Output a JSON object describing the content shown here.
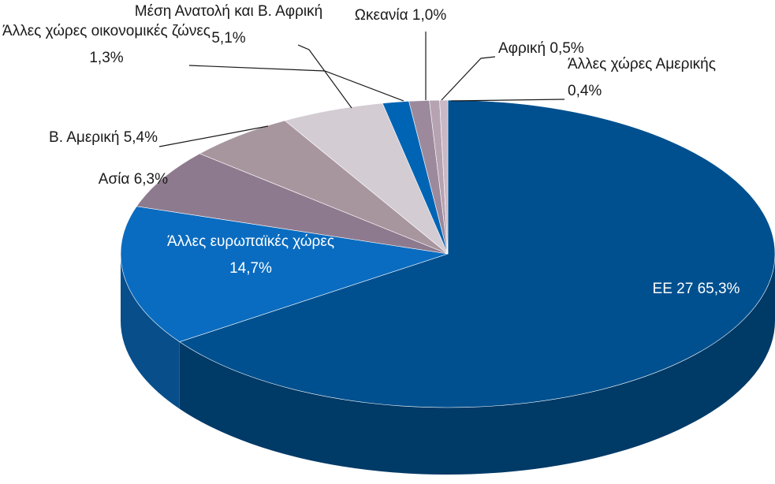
{
  "chart_data": {
    "type": "pie",
    "categories": [
      "ΕΕ 27",
      "Άλλες ευρωπαϊκές χώρες",
      "Ασία",
      "Β. Αμερική",
      "Μέση Ανατολή και Β. Αφρική",
      "Άλλες χώρες οικονομικές ζώνες",
      "Ωκεανία",
      "Αφρική",
      "Άλλες χώρες Αμερικής"
    ],
    "values": [
      65.3,
      14.7,
      6.3,
      5.4,
      5.1,
      1.3,
      1.0,
      0.5,
      0.4
    ],
    "value_labels": [
      "65,3%",
      "14,7%",
      "6,3%",
      "5,4%",
      "5,1%",
      "1,3%",
      "1,0%",
      "0,5%",
      "0,4%"
    ],
    "colors": [
      "#00508f",
      "#0a6cc0",
      "#8e7a8e",
      "#a8969f",
      "#d3ccd3",
      "#0064b4",
      "#9c8a9c",
      "#b6a3b2",
      "#c9b9c6"
    ]
  }
}
